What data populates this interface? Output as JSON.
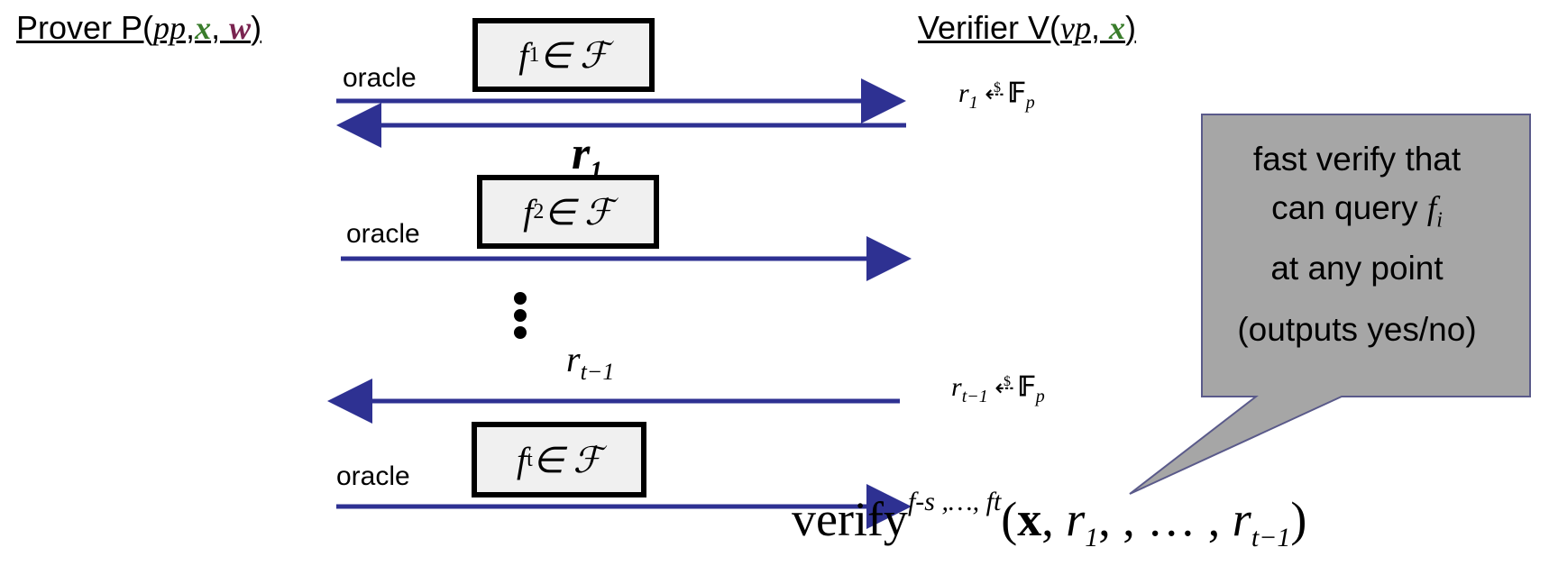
{
  "prover": {
    "prefix": "Prover P(",
    "pp": "pp",
    "comma1": ",",
    "x": "x",
    "comma2": ", ",
    "w": "w",
    "suffix": ")"
  },
  "verifier": {
    "prefix": "Verifier V(",
    "vp": "vp",
    "comma": ", ",
    "x": "x",
    "suffix": ")"
  },
  "rounds": [
    {
      "oracle_label": "oracle",
      "f": "f",
      "f_sub": "1",
      "in_family": " ∈ ℱ"
    },
    {
      "oracle_label": "oracle",
      "f": "f",
      "f_sub": "2",
      "in_family": " ∈ ℱ"
    },
    {
      "oracle_label": "oracle",
      "f": "f",
      "f_sub": "t",
      "in_family": " ∈ ℱ"
    }
  ],
  "challenges": [
    {
      "r": "r",
      "sub": "1"
    },
    {
      "r": "r",
      "sub": "t−1"
    }
  ],
  "samples": [
    {
      "r": "r",
      "sub": "1",
      "arrow": "⇠",
      "dollar": "$",
      "field": "𝔽",
      "field_sub": "p"
    },
    {
      "r": "r",
      "sub": "t−1",
      "arrow": "⇠",
      "dollar": "$",
      "field": "𝔽",
      "field_sub": "p"
    }
  ],
  "ellipsis": "⋮",
  "callout": {
    "line1": "fast verify that",
    "line2_prefix": "can query ",
    "line2_var": "f",
    "line2_sub": "i",
    "line3": "at any point",
    "line4": "(outputs yes/no)"
  },
  "verify": {
    "name": "verify",
    "sup": "f-s ,…, ft",
    "open": "(",
    "x": "x",
    "sep1": ", ",
    "r1": "r",
    "r1_sub": "1",
    "mid": ", , … , ",
    "rt": "r",
    "rt_sub": "t−1",
    "close": ")"
  },
  "colors": {
    "arrow": "#2e3192",
    "callout_fill": "#a6a6a6",
    "callout_border": "#5a5a8a",
    "green": "#3a7d2c",
    "purple": "#7a2450"
  }
}
